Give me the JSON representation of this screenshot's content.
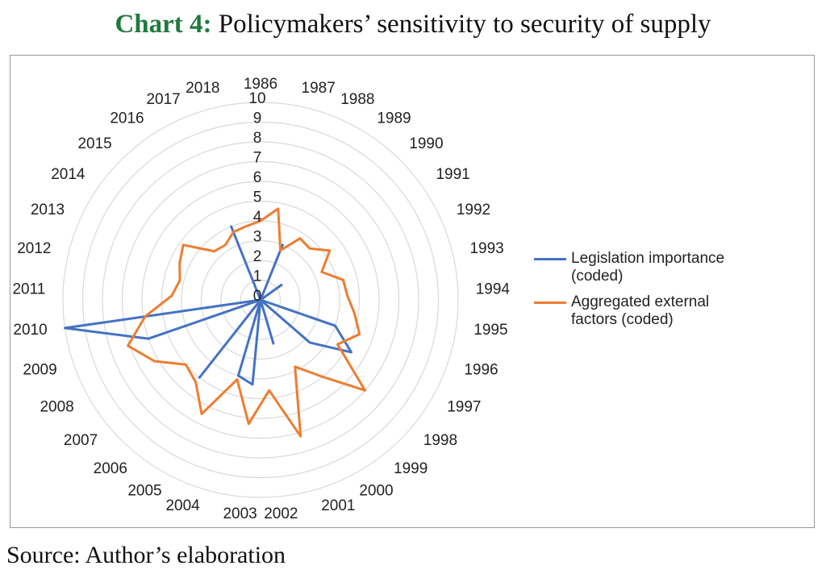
{
  "chart_data": {
    "type": "radar",
    "title_prefix": "Chart 4:",
    "title": "Policymakers’ sensitivity to security of supply",
    "categories": [
      "1986",
      "1987",
      "1988",
      "1989",
      "1990",
      "1991",
      "1992",
      "1993",
      "1994",
      "1995",
      "1996",
      "1997",
      "1998",
      "1999",
      "2000",
      "2001",
      "2002",
      "2003",
      "2004",
      "2005",
      "2006",
      "2007",
      "2008",
      "2009",
      "2010",
      "2011",
      "2012",
      "2013",
      "2014",
      "2015",
      "2016",
      "2017",
      "2018"
    ],
    "series": [
      {
        "name": "Legislation importance (coded)",
        "color": "#4472c4",
        "values": [
          0,
          0,
          3,
          0,
          0,
          1.3,
          0,
          0,
          0,
          0,
          4,
          5.3,
          3.3,
          0,
          0,
          2.3,
          0,
          4.3,
          4,
          0,
          5,
          0,
          0,
          6,
          10,
          0,
          0,
          0,
          0,
          0,
          0,
          4,
          0
        ]
      },
      {
        "name": "Aggregated external factors (coded)",
        "color": "#ed7d31",
        "values": [
          4,
          4.7,
          2.7,
          3.7,
          3.6,
          4.3,
          3.4,
          4.3,
          4.4,
          4.8,
          5.3,
          4.5,
          7,
          4.9,
          3.8,
          7.2,
          4.6,
          6.3,
          4.2,
          6.5,
          5.3,
          5,
          6.2,
          7.1,
          5.9,
          4.5,
          4.2,
          4.5,
          4.8,
          3.4,
          3.3,
          3.7,
          3.8
        ]
      }
    ],
    "rlim": [
      0,
      10
    ],
    "rticks": [
      0,
      1,
      2,
      3,
      4,
      5,
      6,
      7,
      8,
      9,
      10
    ],
    "grid": true,
    "legend": "right"
  },
  "source": "Source: Author’s elaboration"
}
